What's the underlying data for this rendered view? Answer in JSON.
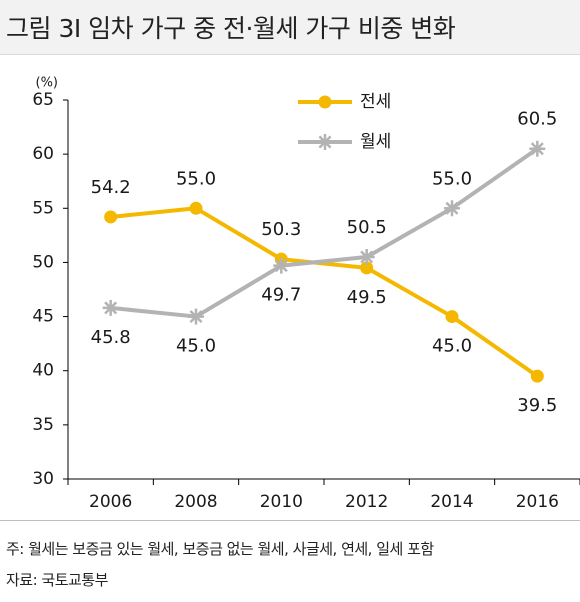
{
  "header": {
    "title": "그림 3I 임차 가구 중 전·월세 가구 비중 변화"
  },
  "footer": {
    "note": "주:  월세는 보증금 있는 월세, 보증금 없는 월세, 사글세, 연세, 일세 포함",
    "source": "자료:  국토교통부"
  },
  "chart_data": {
    "type": "line",
    "title": "",
    "xlabel": "",
    "ylabel": "(%)",
    "categories": [
      "2006",
      "2008",
      "2010",
      "2012",
      "2014",
      "2016"
    ],
    "ylim": [
      30,
      65
    ],
    "yticks": [
      30,
      35,
      40,
      45,
      50,
      55,
      60,
      65
    ],
    "grid": false,
    "legend": "top-center",
    "series": [
      {
        "name": "전세",
        "color": "#f5b800",
        "marker": "circle",
        "values": [
          54.2,
          55.0,
          50.3,
          49.5,
          45.0,
          39.5
        ],
        "labels": [
          "54.2",
          "55.0",
          "50.3",
          "49.5",
          "45.0",
          "39.5"
        ]
      },
      {
        "name": "월세",
        "color": "#b3b3b3",
        "marker": "asterisk",
        "values": [
          45.8,
          45.0,
          49.7,
          50.5,
          55.0,
          60.5
        ],
        "labels": [
          "45.8",
          "45.0",
          "49.7",
          "50.5",
          "55.0",
          "60.5"
        ]
      }
    ]
  }
}
